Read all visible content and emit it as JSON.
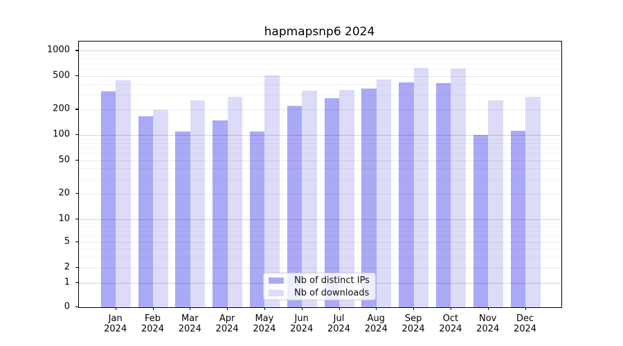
{
  "title": "hapmapsnp6 2024",
  "chart_data": {
    "type": "bar",
    "title": "hapmapsnp6 2024",
    "categories": [
      "Jan",
      "Feb",
      "Mar",
      "Apr",
      "May",
      "Jun",
      "Jul",
      "Aug",
      "Sep",
      "Oct",
      "Nov",
      "Dec"
    ],
    "year_label": "2024",
    "series": [
      {
        "name": "Nb of distinct IPs",
        "color": "#a9a9f6",
        "values": [
          330,
          168,
          110,
          148,
          110,
          222,
          275,
          358,
          425,
          412,
          100,
          112
        ]
      },
      {
        "name": "Nb of downloads",
        "color": "#dcdcf8",
        "values": [
          450,
          199,
          260,
          285,
          505,
          335,
          340,
          455,
          630,
          613,
          260,
          285
        ]
      }
    ],
    "xlabel": "",
    "ylabel": "",
    "yscale": "symlog",
    "yticks": [
      0,
      1,
      2,
      5,
      10,
      20,
      50,
      100,
      200,
      500,
      1000
    ],
    "ylim": [
      0,
      1300
    ],
    "grid": true,
    "legend_position": "lower center"
  }
}
